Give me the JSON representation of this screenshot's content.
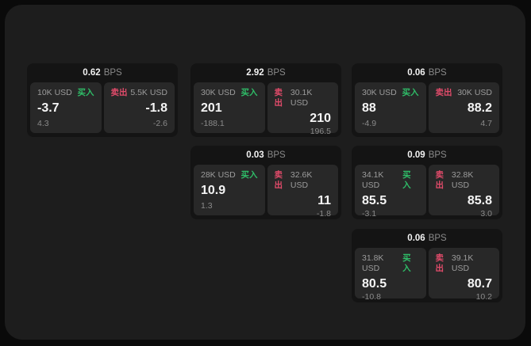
{
  "labels": {
    "bps_unit": "BPS",
    "buy": "买入",
    "sell": "卖出"
  },
  "colors": {
    "buy_green": "#2fbd68",
    "sell_red": "#e14b6a",
    "frame_bg": "#1d1d1d",
    "card_bg": "#141414",
    "panel_bg": "#282828"
  },
  "cards": [
    {
      "bps": "0.62",
      "buy": {
        "amount": "10K USD",
        "price": "-3.7",
        "delta": "4.3"
      },
      "sell": {
        "amount": "5.5K USD",
        "price": "-1.8",
        "delta": "-2.6"
      }
    },
    {
      "bps": "2.92",
      "buy": {
        "amount": "30K USD",
        "price": "201",
        "delta": "-188.1"
      },
      "sell": {
        "amount": "30.1K USD",
        "price": "210",
        "delta": "196.5"
      }
    },
    {
      "bps": "0.06",
      "buy": {
        "amount": "30K USD",
        "price": "88",
        "delta": "-4.9"
      },
      "sell": {
        "amount": "30K USD",
        "price": "88.2",
        "delta": "4.7"
      }
    },
    {
      "bps": "0.03",
      "buy": {
        "amount": "28K USD",
        "price": "10.9",
        "delta": "1.3"
      },
      "sell": {
        "amount": "32.6K USD",
        "price": "11",
        "delta": "-1.8"
      }
    },
    {
      "bps": "0.09",
      "buy": {
        "amount": "34.1K USD",
        "price": "85.5",
        "delta": "-3.1"
      },
      "sell": {
        "amount": "32.8K USD",
        "price": "85.8",
        "delta": "3.0"
      }
    },
    {
      "bps": "0.06",
      "buy": {
        "amount": "31.8K USD",
        "price": "80.5",
        "delta": "-10.8"
      },
      "sell": {
        "amount": "39.1K USD",
        "price": "80.7",
        "delta": "10.2"
      }
    }
  ]
}
